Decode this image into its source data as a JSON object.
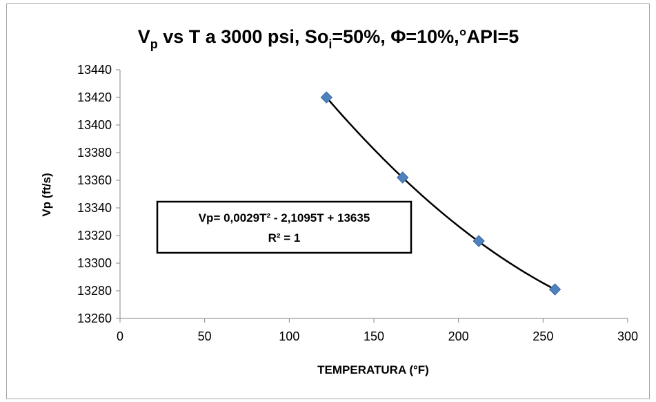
{
  "chart_data": {
    "type": "scatter",
    "title": {
      "main": "V",
      "sub_p": "p",
      "mid": " vs T a 3000 psi, So",
      "sub_i": "i",
      "rest": "=50%, Φ=10%,°API=5"
    },
    "xlabel": "TEMPERATURA (°F)",
    "ylabel": "Vp (ft/s)",
    "xlim": [
      0,
      300
    ],
    "ylim": [
      13260,
      13440
    ],
    "xticks": [
      0,
      50,
      100,
      150,
      200,
      250,
      300
    ],
    "yticks": [
      13260,
      13280,
      13300,
      13320,
      13340,
      13360,
      13380,
      13400,
      13420,
      13440
    ],
    "grid": false,
    "series": [
      {
        "marker": "diamond",
        "color": "#4f81bd",
        "x": [
          122,
          167,
          212,
          257
        ],
        "y": [
          13420,
          13362,
          13316,
          13281
        ]
      }
    ],
    "trendline": {
      "type": "polynomial",
      "order": 2,
      "a": 0.0029,
      "b": -2.1095,
      "c": 13635,
      "color": "#000000",
      "equation_text": "Vp= 0,0029T² - 2,1095T + 13635",
      "r2_text": "R² = 1"
    }
  }
}
